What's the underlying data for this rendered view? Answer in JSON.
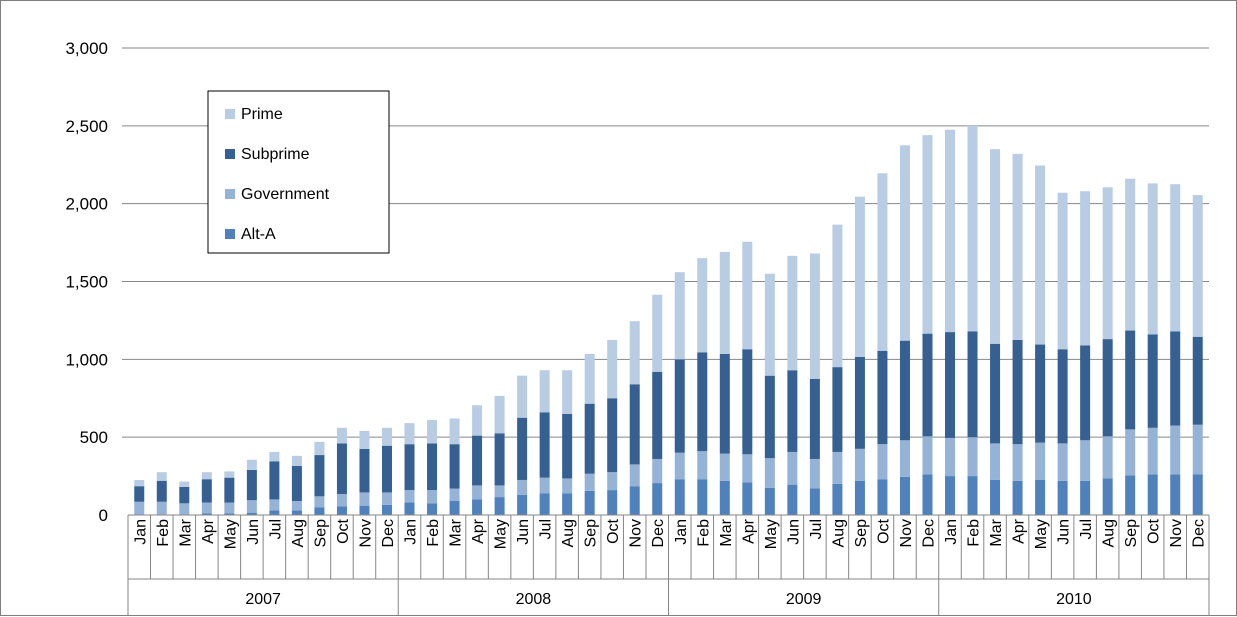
{
  "chart_data": {
    "type": "bar",
    "stacked": true,
    "title": "",
    "xlabel": "",
    "ylabel": "",
    "ylim": [
      0,
      3000
    ],
    "yticks": [
      "0",
      "500",
      "1,000",
      "1,500",
      "2,000",
      "2,500",
      "3,000"
    ],
    "grid": true,
    "legend_position": "top-left",
    "legend_order": [
      "Prime",
      "Subprime",
      "Government",
      "Alt-A"
    ],
    "years": [
      "2007",
      "2008",
      "2009",
      "2010"
    ],
    "months": [
      "Jan",
      "Feb",
      "Mar",
      "Apr",
      "May",
      "Jun",
      "Jul",
      "Aug",
      "Sep",
      "Oct",
      "Nov",
      "Dec"
    ],
    "series": [
      {
        "name": "Alt-A",
        "color": "#4f81bd",
        "values": [
          5,
          5,
          5,
          10,
          10,
          15,
          30,
          30,
          50,
          55,
          60,
          65,
          80,
          75,
          90,
          100,
          115,
          130,
          140,
          140,
          155,
          160,
          185,
          205,
          230,
          230,
          220,
          210,
          175,
          195,
          170,
          200,
          220,
          230,
          245,
          260,
          250,
          250,
          225,
          220,
          225,
          220,
          220,
          235,
          255,
          260,
          260,
          260
        ]
      },
      {
        "name": "Government",
        "color": "#95b3d7",
        "values": [
          80,
          80,
          70,
          70,
          70,
          80,
          70,
          60,
          70,
          80,
          85,
          80,
          80,
          85,
          80,
          90,
          75,
          95,
          100,
          95,
          110,
          115,
          140,
          155,
          170,
          180,
          175,
          180,
          190,
          210,
          190,
          205,
          205,
          225,
          235,
          245,
          245,
          250,
          235,
          235,
          240,
          240,
          260,
          270,
          295,
          300,
          315,
          320
        ]
      },
      {
        "name": "Subprime",
        "color": "#366092",
        "values": [
          100,
          135,
          105,
          150,
          160,
          195,
          245,
          225,
          265,
          325,
          280,
          300,
          295,
          300,
          285,
          320,
          335,
          400,
          420,
          415,
          450,
          475,
          515,
          560,
          600,
          635,
          640,
          675,
          530,
          525,
          515,
          545,
          590,
          600,
          640,
          660,
          680,
          680,
          640,
          670,
          630,
          605,
          610,
          625,
          635,
          600,
          605,
          565
        ]
      },
      {
        "name": "Prime",
        "color": "#b8cce4",
        "values": [
          40,
          55,
          35,
          45,
          40,
          65,
          60,
          65,
          85,
          100,
          115,
          115,
          135,
          150,
          165,
          195,
          240,
          270,
          270,
          280,
          320,
          375,
          405,
          495,
          560,
          605,
          655,
          690,
          655,
          735,
          805,
          915,
          1030,
          1140,
          1255,
          1275,
          1300,
          1320,
          1250,
          1195,
          1150,
          1005,
          990,
          975,
          975,
          970,
          945,
          910
        ]
      }
    ]
  }
}
